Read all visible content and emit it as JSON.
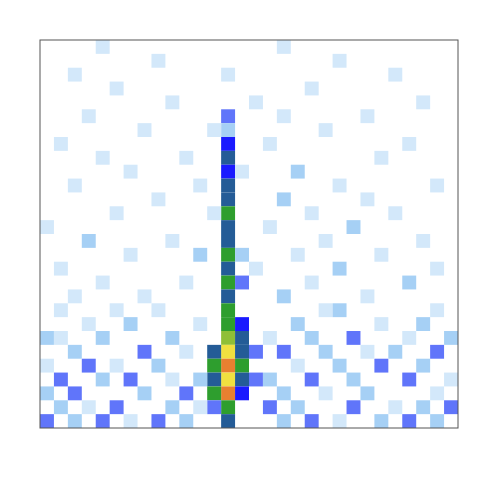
{
  "chart_data": {
    "type": "heatmap",
    "xlim": [
      0,
      30
    ],
    "ylim": [
      0,
      28
    ],
    "zlim": [
      0,
      10
    ],
    "tick_labels": false,
    "colors": [
      "#ffffff",
      "#a6d0f5",
      "#1a1aff",
      "#2e9e2e",
      "#f0e040",
      "#e02020"
    ],
    "cells": [
      [
        13,
        22,
        3
      ],
      [
        13,
        21,
        2
      ],
      [
        13,
        20,
        4
      ],
      [
        13,
        19,
        5
      ],
      [
        13,
        18,
        4
      ],
      [
        13,
        17,
        5
      ],
      [
        13,
        16,
        5
      ],
      [
        13,
        15,
        6
      ],
      [
        13,
        14,
        5
      ],
      [
        13,
        13,
        5
      ],
      [
        13,
        12,
        6
      ],
      [
        13,
        11,
        5
      ],
      [
        13,
        10,
        6
      ],
      [
        13,
        9,
        5
      ],
      [
        13,
        8,
        6
      ],
      [
        13,
        7,
        6
      ],
      [
        13,
        6,
        7
      ],
      [
        13,
        5,
        8
      ],
      [
        13,
        4,
        9
      ],
      [
        13,
        3,
        8
      ],
      [
        13,
        2,
        9
      ],
      [
        13,
        1,
        6
      ],
      [
        13,
        0,
        5
      ],
      [
        12,
        5,
        5
      ],
      [
        12,
        4,
        6
      ],
      [
        12,
        3,
        5
      ],
      [
        12,
        2,
        6
      ],
      [
        12,
        1,
        3
      ],
      [
        14,
        7,
        4
      ],
      [
        14,
        6,
        5
      ],
      [
        14,
        5,
        5
      ],
      [
        14,
        4,
        6
      ],
      [
        14,
        3,
        5
      ],
      [
        14,
        2,
        4
      ],
      [
        14,
        10,
        3
      ],
      [
        14,
        12,
        2
      ],
      [
        15,
        5,
        3
      ],
      [
        15,
        3,
        3
      ],
      [
        0,
        0,
        3
      ],
      [
        2,
        0,
        2
      ],
      [
        4,
        0,
        3
      ],
      [
        6,
        0,
        1
      ],
      [
        8,
        0,
        3
      ],
      [
        10,
        0,
        2
      ],
      [
        17,
        0,
        2
      ],
      [
        19,
        0,
        3
      ],
      [
        21,
        0,
        1
      ],
      [
        24,
        0,
        2
      ],
      [
        26,
        0,
        3
      ],
      [
        28,
        0,
        2
      ],
      [
        1,
        1,
        2
      ],
      [
        3,
        1,
        1
      ],
      [
        5,
        1,
        3
      ],
      [
        9,
        1,
        2
      ],
      [
        11,
        1,
        1
      ],
      [
        16,
        1,
        3
      ],
      [
        18,
        1,
        2
      ],
      [
        22,
        1,
        3
      ],
      [
        25,
        1,
        1
      ],
      [
        27,
        1,
        2
      ],
      [
        29,
        1,
        3
      ],
      [
        0,
        2,
        2
      ],
      [
        2,
        2,
        3
      ],
      [
        7,
        2,
        2
      ],
      [
        10,
        2,
        3
      ],
      [
        17,
        2,
        2
      ],
      [
        20,
        2,
        1
      ],
      [
        23,
        2,
        2
      ],
      [
        28,
        2,
        1
      ],
      [
        1,
        3,
        3
      ],
      [
        4,
        3,
        2
      ],
      [
        6,
        3,
        3
      ],
      [
        9,
        3,
        1
      ],
      [
        11,
        3,
        2
      ],
      [
        16,
        3,
        2
      ],
      [
        19,
        3,
        3
      ],
      [
        22,
        3,
        2
      ],
      [
        26,
        3,
        3
      ],
      [
        29,
        3,
        1
      ],
      [
        0,
        4,
        1
      ],
      [
        3,
        4,
        3
      ],
      [
        5,
        4,
        1
      ],
      [
        8,
        4,
        2
      ],
      [
        18,
        4,
        1
      ],
      [
        21,
        4,
        2
      ],
      [
        24,
        4,
        3
      ],
      [
        27,
        4,
        2
      ],
      [
        2,
        5,
        2
      ],
      [
        7,
        5,
        3
      ],
      [
        10,
        5,
        1
      ],
      [
        17,
        5,
        3
      ],
      [
        20,
        5,
        2
      ],
      [
        23,
        5,
        1
      ],
      [
        25,
        5,
        2
      ],
      [
        28,
        5,
        3
      ],
      [
        0,
        6,
        2
      ],
      [
        1,
        6,
        1
      ],
      [
        4,
        6,
        2
      ],
      [
        9,
        6,
        2
      ],
      [
        16,
        6,
        1
      ],
      [
        19,
        6,
        2
      ],
      [
        22,
        6,
        3
      ],
      [
        26,
        6,
        1
      ],
      [
        29,
        6,
        2
      ],
      [
        3,
        7,
        1
      ],
      [
        6,
        7,
        2
      ],
      [
        11,
        7,
        1
      ],
      [
        18,
        7,
        2
      ],
      [
        24,
        7,
        1
      ],
      [
        27,
        7,
        2
      ],
      [
        1,
        8,
        1
      ],
      [
        5,
        8,
        1
      ],
      [
        8,
        8,
        1
      ],
      [
        20,
        8,
        1
      ],
      [
        21,
        8,
        2
      ],
      [
        28,
        8,
        1
      ],
      [
        2,
        9,
        1
      ],
      [
        7,
        9,
        1
      ],
      [
        17,
        9,
        2
      ],
      [
        23,
        9,
        1
      ],
      [
        4,
        10,
        1
      ],
      [
        10,
        10,
        1
      ],
      [
        19,
        10,
        1
      ],
      [
        26,
        10,
        2
      ],
      [
        1,
        11,
        1
      ],
      [
        15,
        11,
        1
      ],
      [
        21,
        11,
        2
      ],
      [
        28,
        11,
        1
      ],
      [
        6,
        12,
        1
      ],
      [
        11,
        12,
        2
      ],
      [
        18,
        12,
        1
      ],
      [
        24,
        12,
        1
      ],
      [
        3,
        13,
        2
      ],
      [
        9,
        13,
        1
      ],
      [
        20,
        13,
        1
      ],
      [
        27,
        13,
        1
      ],
      [
        0,
        14,
        1
      ],
      [
        16,
        14,
        1
      ],
      [
        22,
        14,
        2
      ],
      [
        5,
        15,
        1
      ],
      [
        12,
        15,
        1
      ],
      [
        19,
        15,
        1
      ],
      [
        25,
        15,
        1
      ],
      [
        8,
        16,
        1
      ],
      [
        17,
        16,
        2
      ],
      [
        23,
        16,
        1
      ],
      [
        2,
        17,
        1
      ],
      [
        11,
        17,
        1
      ],
      [
        21,
        17,
        1
      ],
      [
        28,
        17,
        1
      ],
      [
        6,
        18,
        1
      ],
      [
        14,
        18,
        1
      ],
      [
        18,
        18,
        2
      ],
      [
        4,
        19,
        1
      ],
      [
        10,
        19,
        1
      ],
      [
        24,
        19,
        1
      ],
      [
        1,
        20,
        1
      ],
      [
        16,
        20,
        1
      ],
      [
        26,
        20,
        1
      ],
      [
        7,
        21,
        1
      ],
      [
        12,
        21,
        1
      ],
      [
        20,
        21,
        1
      ],
      [
        3,
        22,
        1
      ],
      [
        17,
        22,
        1
      ],
      [
        23,
        22,
        1
      ],
      [
        9,
        23,
        1
      ],
      [
        15,
        23,
        1
      ],
      [
        27,
        23,
        1
      ],
      [
        5,
        24,
        1
      ],
      [
        19,
        24,
        1
      ],
      [
        2,
        25,
        1
      ],
      [
        13,
        25,
        1
      ],
      [
        25,
        25,
        1
      ],
      [
        8,
        26,
        1
      ],
      [
        21,
        26,
        1
      ],
      [
        4,
        27,
        1
      ],
      [
        17,
        27,
        1
      ]
    ]
  }
}
